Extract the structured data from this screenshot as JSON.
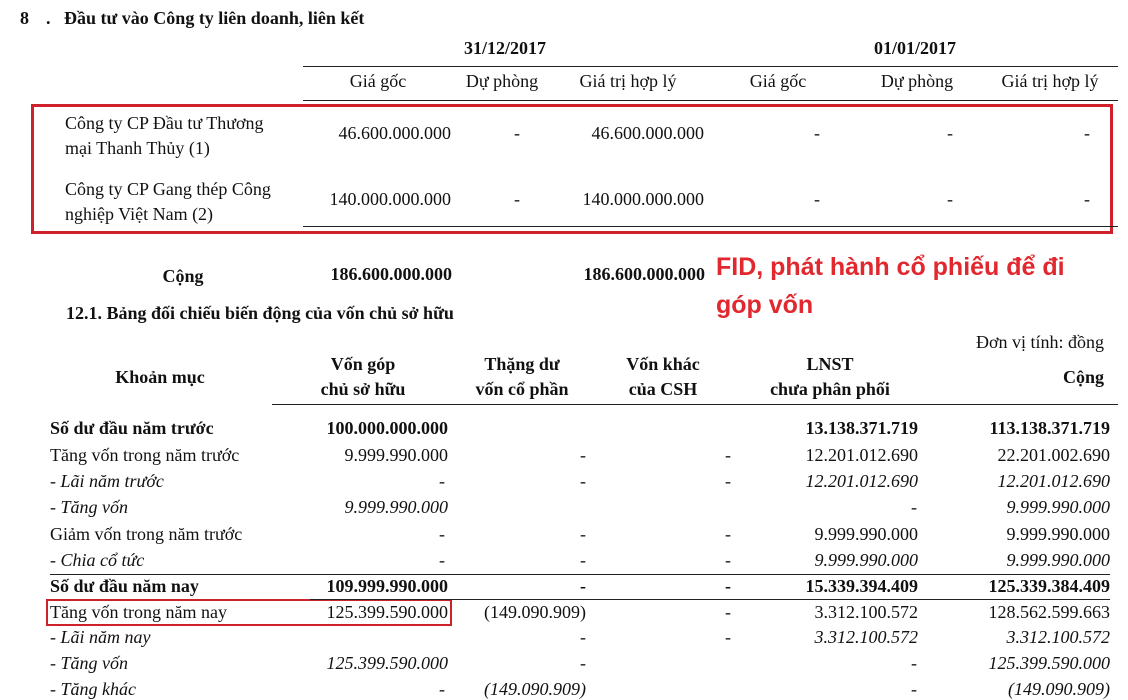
{
  "section8": {
    "number": "8",
    "dot": ".",
    "title": "Đầu tư vào Công ty liên doanh, liên kết",
    "periods": [
      "31/12/2017",
      "01/01/2017"
    ],
    "columns": [
      "Giá gốc",
      "Dự phòng",
      "Giá trị hợp lý",
      "Giá gốc",
      "Dự phòng",
      "Giá trị hợp lý"
    ],
    "rows": [
      {
        "label": [
          "Công ty CP Đầu tư Thương",
          "mại Thanh Thủy (1)"
        ],
        "cells": [
          "46.600.000.000",
          "-",
          "46.600.000.000",
          "-",
          "-",
          "-"
        ]
      },
      {
        "label": [
          "Công ty CP Gang thép Công",
          "nghiệp Việt Nam (2)"
        ],
        "cells": [
          "140.000.000.000",
          "-",
          "140.000.000.000",
          "-",
          "-",
          "-"
        ]
      }
    ],
    "total": {
      "label": "Cộng",
      "cost": "186.600.000.000",
      "fair_value": "186.600.000.000"
    }
  },
  "annotation": "FID, phát hành cổ phiếu để đi góp vốn",
  "section12_1": {
    "title": "12.1. Bảng đối chiếu biến động của vốn chủ sở hữu",
    "unit": "Đơn vị tính: đồng",
    "columns": [
      [
        "Khoản mục"
      ],
      [
        "Vốn góp",
        "chủ sở hữu"
      ],
      [
        "Thặng dư",
        "vốn cổ phần"
      ],
      [
        "Vốn khác",
        "của CSH"
      ],
      [
        "LNST",
        "chưa phân phối"
      ],
      [
        "Cộng"
      ]
    ],
    "rows": [
      {
        "style": "bold",
        "label": "Số dư đầu năm trước",
        "cells": [
          "100.000.000.000",
          null,
          null,
          "13.138.371.719",
          "113.138.371.719"
        ]
      },
      {
        "style": "normal",
        "label": "Tăng vốn trong năm trước",
        "cells": [
          "9.999.990.000",
          "-",
          "-",
          "12.201.012.690",
          "22.201.002.690"
        ]
      },
      {
        "style": "italic",
        "label": "- Lãi năm trước",
        "cells": [
          "-",
          "-",
          "-",
          "12.201.012.690",
          "12.201.012.690"
        ]
      },
      {
        "style": "italic",
        "label": "- Tăng vốn",
        "cells": [
          "9.999.990.000",
          null,
          null,
          "-",
          "9.999.990.000"
        ]
      },
      {
        "style": "normal",
        "label": "Giảm vốn trong năm trước",
        "cells": [
          "-",
          "-",
          "-",
          "9.999.990.000",
          "9.999.990.000"
        ]
      },
      {
        "style": "italic",
        "label": "- Chia cổ tức",
        "cells": [
          "-",
          "-",
          "-",
          "9.999.990.000",
          "9.999.990.000"
        ]
      },
      {
        "style": "bold",
        "label": "Số dư đầu năm nay",
        "cells": [
          "109.999.990.000",
          "-",
          "-",
          "15.339.394.409",
          "125.339.384.409"
        ]
      },
      {
        "style": "normal",
        "label": "Tăng vốn trong năm nay",
        "cells": [
          "125.399.590.000",
          "(149.090.909)",
          "-",
          "3.312.100.572",
          "128.562.599.663"
        ]
      },
      {
        "style": "italic",
        "label": "- Lãi năm nay",
        "cells": [
          null,
          "-",
          "-",
          "3.312.100.572",
          "3.312.100.572"
        ]
      },
      {
        "style": "italic",
        "label": "- Tăng vốn",
        "cells": [
          "125.399.590.000",
          "-",
          null,
          "-",
          "125.399.590.000"
        ]
      },
      {
        "style": "italic",
        "label": "- Tăng khác",
        "cells": [
          "-",
          "(149.090.909)",
          null,
          "-",
          "(149.090.909)"
        ]
      }
    ]
  }
}
